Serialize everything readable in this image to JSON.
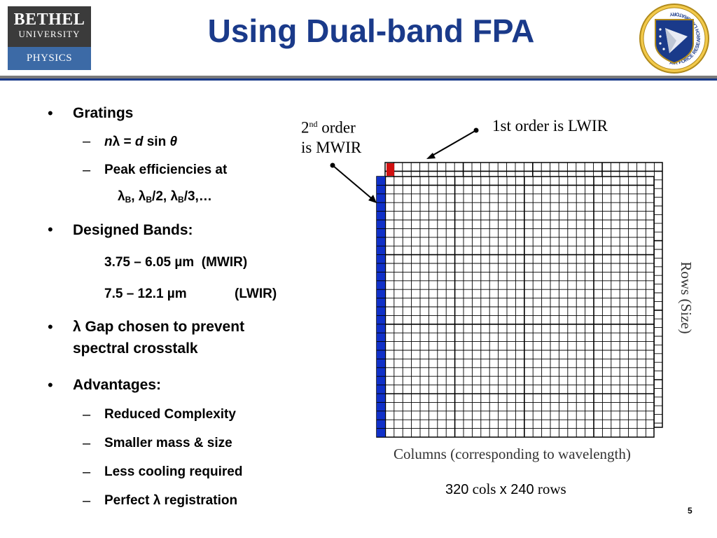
{
  "header": {
    "title": "Using Dual-band FPA",
    "logo_left": {
      "line1": "BETHEL",
      "line2": "UNIVERSITY",
      "dept": "PHYSICS"
    },
    "logo_right": {
      "ring_text": "AIR FORCE RESEARCH LABORATORY"
    },
    "colors": {
      "title": "#1a3a8a",
      "rule_gray": "#7a7a7a",
      "rule_blue": "#1a3a8a"
    }
  },
  "bullets": {
    "gratings": "Gratings",
    "grating_eq": {
      "n": "n",
      "lam": "λ",
      "eq": " = ",
      "d": "d",
      "sin": " sin ",
      "theta": "θ"
    },
    "peak": "Peak efficiencies at",
    "peak_values": {
      "l1": "λ",
      "b1": "B",
      "sep1": ", λ",
      "b2": "B",
      "sep2": "/2, λ",
      "b3": "B",
      "sep3": "/3,…"
    },
    "designed": "Designed Bands:",
    "band1": "3.75 – 6.05 µm  (MWIR)",
    "band2a": "7.5 – 12.1 µm",
    "band2b": "(LWIR)",
    "gap1": "λ Gap chosen to prevent",
    "gap2": "spectral crosstalk",
    "advantages": "Advantages:",
    "adv": [
      "Reduced Complexity",
      "Smaller mass & size",
      "Less cooling required",
      "Perfect λ registration"
    ],
    "bullet_symbol": "•",
    "dash_symbol": "–"
  },
  "figure": {
    "label_2nd_pre": "2",
    "label_2nd_sup": "nd",
    "label_2nd_post": " order",
    "label_2nd_line2": "is MWIR",
    "label_1st": "1st order is LWIR",
    "rows_label": "Rows (Size)",
    "cols_label": "Columns (corresponding to wavelength)",
    "caption": {
      "n1": "320",
      "w1": " cols ",
      "x": "x",
      "n2": " 240",
      "w2": " rows"
    },
    "colors": {
      "mwir": "#1030c8",
      "lwir_marker": "#d01010",
      "grid": "#000000"
    }
  },
  "page_number": "5"
}
